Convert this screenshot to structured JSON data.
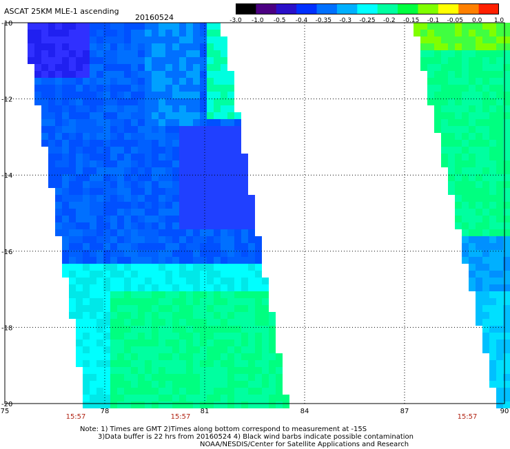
{
  "header": {
    "title": "ASCAT 25KM MLE-1 ascending",
    "date": "20160524"
  },
  "colorbar": {
    "labels": [
      "-3.0",
      "-1.0",
      "-0.5",
      "-0.4",
      "-0.35",
      "-0.3",
      "-0.25",
      "-0.2",
      "-0.15",
      "-0.1",
      "-0.05",
      "0.0",
      "1.0"
    ],
    "colors": [
      "#000000",
      "#4b0082",
      "#2a10c8",
      "#0030ff",
      "#0070ff",
      "#00b0ff",
      "#00ffff",
      "#00ffa0",
      "#00ff40",
      "#80ff00",
      "#ffff00",
      "#ff8000",
      "#ff2000"
    ]
  },
  "axes": {
    "lat_labels": [
      "-10",
      "-12",
      "-14",
      "-16",
      "-18",
      "-20"
    ],
    "lon_labels": [
      "75",
      "78",
      "81",
      "84",
      "87",
      "90"
    ],
    "lat_range": [
      -20,
      -10
    ],
    "lon_range": [
      75,
      90
    ]
  },
  "swath_times": [
    "15:57",
    "15:57",
    "15:57"
  ],
  "notes": {
    "line1": "Note: 1) Times are GMT 2)Times along bottom correspond to measurement at -15S",
    "line2": "3)Data buffer is 22 hrs from 20160524 4) Black wind barbs indicate possible contamination",
    "line3": "NOAA/NESDIS/Center for Satellite Applications and Research"
  }
}
